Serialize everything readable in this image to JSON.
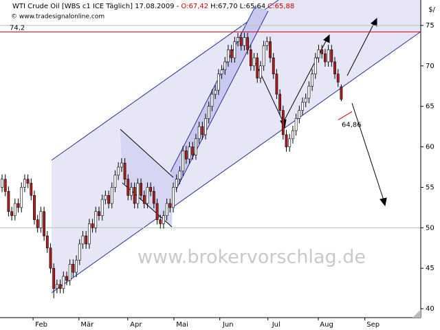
{
  "chart_data": {
    "type": "candlestick",
    "title": "WTI Crude Oil [WBS c1 ICE  Täglich] 17.08.2009 - ",
    "title_values": [
      {
        "label": "O:67,42",
        "color": "#cc0000"
      },
      {
        "label": "H:67,70",
        "color": "#000000"
      },
      {
        "label": "L:65,64",
        "color": "#000000"
      },
      {
        "label": "C:65,88",
        "color": "#cc0000"
      }
    ],
    "copyright": "© www.tradesignalonline.com",
    "watermark": "www.brokervorschlag.de",
    "y_axis_label": "$/",
    "up_color": "#ffffff",
    "down_color": "#b01c1c",
    "open": [
      55,
      56,
      54.5,
      52,
      51.5,
      53,
      52.5,
      55,
      56,
      55.5,
      54,
      51,
      50,
      52,
      49,
      47.5,
      45,
      42.5,
      43,
      42.5,
      44,
      43.5,
      45.5,
      44.5,
      46,
      48,
      49,
      48,
      50.5,
      50,
      52,
      51.5,
      53.5,
      54,
      53,
      55,
      56.5,
      57.5,
      58,
      56,
      54,
      55,
      53,
      55.5,
      54,
      53,
      55,
      54.5,
      53,
      51,
      50.5,
      51.5,
      53,
      52.5,
      55,
      56,
      57,
      59.5,
      58.5,
      60,
      59,
      61,
      62.5,
      61.5,
      63.5,
      65,
      66.5,
      67,
      69,
      69.5,
      70.5,
      72,
      71,
      73,
      73.5,
      72.5,
      73.5,
      72,
      70,
      71,
      68.5,
      70,
      72.5,
      73,
      71,
      69,
      66.5,
      64.5,
      61.5,
      60,
      61,
      62,
      63.5,
      64.5,
      65.5,
      66,
      67.5,
      69,
      71,
      72,
      71.5,
      70.5,
      72,
      70.5,
      69,
      67.42
    ],
    "high": [
      56.6,
      56.6,
      55.1,
      52.6,
      53.6,
      53.6,
      55.6,
      56.6,
      56.6,
      56.1,
      54.6,
      51.6,
      52.6,
      52.6,
      49.6,
      48.1,
      45.6,
      43.6,
      43.6,
      44.6,
      44.6,
      46.1,
      46.1,
      46.6,
      48.6,
      49.6,
      49.6,
      51.1,
      51.1,
      52.6,
      52.6,
      54.1,
      54.6,
      54.6,
      55.6,
      57.1,
      58.1,
      58.6,
      58.6,
      56.6,
      55.6,
      55.6,
      56.1,
      56.1,
      54.6,
      55.6,
      55.6,
      55.1,
      53.6,
      51.6,
      52.1,
      53.6,
      53.6,
      55.6,
      56.6,
      57.6,
      60.1,
      60.1,
      60.6,
      60.6,
      61.6,
      63.1,
      63.1,
      64.1,
      65.6,
      67.1,
      67.6,
      69.6,
      70.1,
      71.1,
      72.6,
      72.6,
      73.6,
      74.1,
      74.1,
      74.1,
      74.1,
      72.6,
      71.6,
      71.6,
      70.6,
      73.1,
      73.6,
      73.6,
      71.6,
      69.6,
      67.1,
      65.1,
      62.1,
      61.6,
      62.6,
      64.1,
      65.1,
      66.1,
      66.6,
      68.1,
      69.6,
      71.6,
      72.6,
      72.6,
      72.1,
      72.6,
      72.6,
      71.1,
      69.6,
      67.7
    ],
    "low": [
      54.4,
      53.9,
      51.4,
      50.9,
      50.9,
      51.9,
      51.9,
      54.4,
      54.9,
      53.4,
      50.4,
      49.4,
      49.4,
      48.4,
      46.9,
      44.4,
      41.3,
      41.9,
      41.9,
      41.9,
      42.9,
      42.9,
      43.9,
      43.9,
      45.4,
      47.4,
      47.4,
      47.4,
      49.4,
      49.4,
      50.9,
      50.9,
      52.9,
      52.4,
      52.4,
      54.4,
      55.9,
      56.9,
      55.4,
      53.4,
      53.4,
      52.4,
      52.4,
      53.4,
      52.4,
      52.4,
      53.9,
      52.4,
      50.4,
      49.9,
      49.9,
      50.9,
      51.9,
      51.9,
      54.4,
      55.4,
      56.4,
      57.9,
      57.9,
      58.4,
      58.4,
      60.4,
      60.9,
      60.9,
      62.9,
      64.4,
      65.9,
      66.4,
      68.4,
      68.9,
      69.9,
      70.4,
      70.4,
      72.4,
      71.9,
      71.9,
      71.4,
      69.4,
      69.4,
      67.9,
      67.9,
      69.4,
      71.9,
      70.4,
      68.4,
      65.9,
      63.9,
      60.9,
      59.4,
      59.4,
      60.4,
      61.4,
      62.9,
      63.9,
      64.9,
      65.4,
      66.9,
      68.4,
      70.4,
      70.9,
      69.9,
      69.9,
      69.9,
      68.4,
      67.4,
      65.64
    ],
    "close": [
      56,
      54.5,
      52,
      51.5,
      53,
      52.5,
      55,
      56,
      55.5,
      54,
      51,
      50,
      52,
      49,
      47.5,
      45,
      42.5,
      43,
      42.5,
      44,
      43.5,
      45.5,
      44.5,
      46,
      48,
      49,
      48,
      50.5,
      50,
      52,
      51.5,
      53.5,
      54,
      53,
      55,
      56.5,
      57.5,
      58,
      56,
      54,
      55,
      53,
      55.5,
      54,
      53,
      55,
      54.5,
      53,
      51,
      50.5,
      51.5,
      53,
      52.5,
      55,
      56,
      57,
      59.5,
      58.5,
      60,
      59,
      61,
      62.5,
      61.5,
      63.5,
      65,
      66.5,
      67,
      69,
      69.5,
      70.5,
      72,
      71,
      73,
      73.5,
      72.5,
      73.5,
      72,
      70,
      71,
      68.5,
      70,
      72.5,
      73,
      71,
      69,
      66.5,
      64.5,
      61.5,
      60,
      61,
      62,
      63.5,
      64.5,
      65.5,
      66,
      67.5,
      69,
      71,
      72,
      71.5,
      70.5,
      72,
      70.5,
      69,
      68,
      65.88
    ],
    "xlim": [
      -0.64,
      129.6
    ],
    "xticks": [
      {
        "value": 9.6,
        "label": "Feb"
      },
      {
        "value": 23.8,
        "label": "Mär"
      },
      {
        "value": 38.9,
        "label": "Apr"
      },
      {
        "value": 53.2,
        "label": "Mai"
      },
      {
        "value": 67.4,
        "label": "Jun"
      },
      {
        "value": 82.3,
        "label": "Jul"
      },
      {
        "value": 97.9,
        "label": "Aug"
      },
      {
        "value": 112.3,
        "label": "Sep"
      }
    ],
    "ylim": [
      38.9,
      78.14
    ],
    "yticks": [
      40,
      45,
      50,
      55,
      60,
      65,
      70,
      75
    ],
    "reference_lines": [
      {
        "value": 75,
        "color": "#a9c9a9"
      },
      {
        "value": 74.2,
        "label": "74,2",
        "color": "#cc0000"
      },
      {
        "value": 50,
        "color": "#a9c9a9"
      }
    ],
    "annotations": [
      {
        "value": 64.86,
        "label": "64,86",
        "color": "#cc0000"
      }
    ]
  }
}
